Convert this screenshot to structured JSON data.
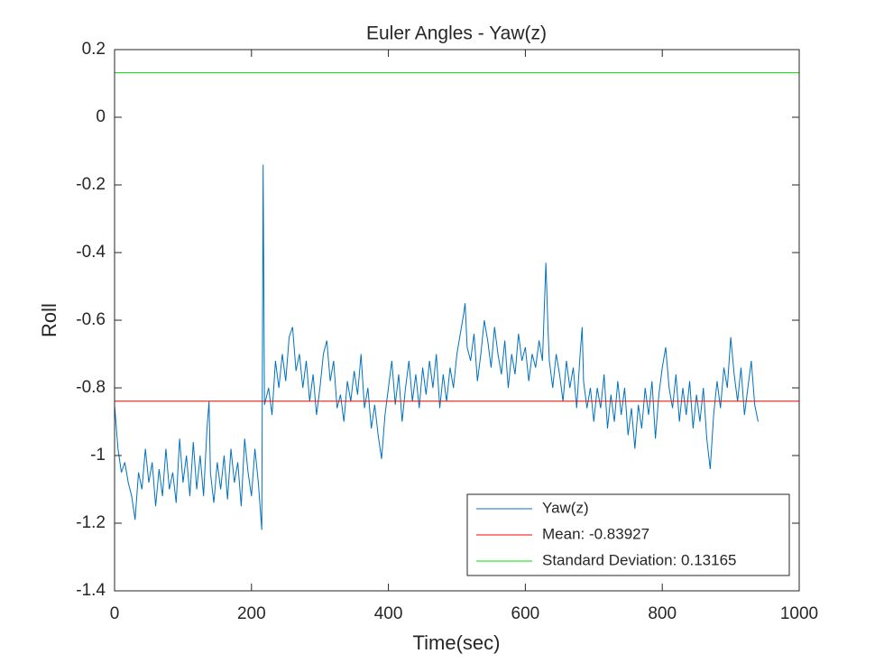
{
  "chart_data": {
    "type": "line",
    "title": "Euler Angles - Yaw(z)",
    "x_label": "Time(sec)",
    "y_label": "Roll",
    "xlim": [
      0,
      1000
    ],
    "xticks": [
      0,
      200,
      400,
      600,
      800,
      1000
    ],
    "ylim": [
      -1.4,
      0.2
    ],
    "yticks": [
      0.2,
      0,
      -0.2,
      -0.4,
      -0.6,
      -0.8,
      -1,
      -1.2,
      -1.4
    ],
    "grid": false,
    "legend": "lower right",
    "series": [
      {
        "name": "Yaw(z)",
        "color": "#0072bd",
        "x": [
          0,
          5,
          10,
          15,
          20,
          25,
          30,
          35,
          40,
          45,
          50,
          55,
          60,
          65,
          70,
          75,
          80,
          85,
          90,
          95,
          100,
          105,
          110,
          115,
          120,
          125,
          130,
          135,
          138,
          140,
          145,
          150,
          155,
          160,
          165,
          170,
          175,
          180,
          185,
          190,
          195,
          200,
          205,
          210,
          215,
          217,
          219,
          225,
          230,
          235,
          240,
          245,
          250,
          255,
          260,
          265,
          270,
          275,
          280,
          285,
          290,
          295,
          300,
          305,
          310,
          315,
          320,
          325,
          330,
          335,
          340,
          345,
          350,
          355,
          360,
          365,
          370,
          375,
          380,
          385,
          390,
          395,
          400,
          405,
          410,
          415,
          420,
          425,
          430,
          435,
          440,
          445,
          450,
          455,
          460,
          465,
          470,
          475,
          480,
          485,
          490,
          495,
          500,
          505,
          510,
          512,
          515,
          520,
          525,
          530,
          535,
          540,
          545,
          550,
          555,
          560,
          565,
          570,
          575,
          580,
          585,
          590,
          595,
          600,
          605,
          610,
          615,
          620,
          625,
          630,
          633,
          635,
          640,
          645,
          650,
          655,
          660,
          665,
          670,
          675,
          680,
          683,
          685,
          690,
          695,
          700,
          705,
          710,
          715,
          720,
          725,
          730,
          735,
          740,
          745,
          750,
          755,
          760,
          765,
          770,
          775,
          780,
          785,
          790,
          795,
          800,
          805,
          810,
          815,
          820,
          825,
          830,
          835,
          840,
          845,
          850,
          855,
          860,
          865,
          870,
          875,
          880,
          885,
          890,
          895,
          900,
          905,
          910,
          915,
          920,
          925,
          930,
          935,
          940
        ],
        "values": [
          -0.85,
          -0.98,
          -1.05,
          -1.02,
          -1.08,
          -1.12,
          -1.19,
          -1.05,
          -1.1,
          -0.98,
          -1.08,
          -1.02,
          -1.15,
          -1.04,
          -1.12,
          -0.98,
          -1.1,
          -1.05,
          -1.14,
          -0.95,
          -1.08,
          -1.0,
          -1.12,
          -0.96,
          -1.1,
          -1.0,
          -1.12,
          -0.92,
          -0.84,
          -1.05,
          -1.14,
          -1.02,
          -1.1,
          -1.0,
          -1.13,
          -0.98,
          -1.08,
          -1.02,
          -1.15,
          -0.95,
          -1.05,
          -1.12,
          -0.98,
          -1.08,
          -1.22,
          -0.14,
          -0.85,
          -0.8,
          -0.88,
          -0.72,
          -0.8,
          -0.7,
          -0.78,
          -0.65,
          -0.62,
          -0.75,
          -0.7,
          -0.8,
          -0.72,
          -0.84,
          -0.76,
          -0.88,
          -0.8,
          -0.7,
          -0.66,
          -0.78,
          -0.72,
          -0.86,
          -0.82,
          -0.9,
          -0.78,
          -0.84,
          -0.75,
          -0.82,
          -0.7,
          -0.86,
          -0.8,
          -0.92,
          -0.85,
          -0.94,
          -1.01,
          -0.88,
          -0.8,
          -0.72,
          -0.85,
          -0.76,
          -0.9,
          -0.8,
          -0.72,
          -0.84,
          -0.76,
          -0.86,
          -0.74,
          -0.82,
          -0.72,
          -0.8,
          -0.7,
          -0.86,
          -0.76,
          -0.84,
          -0.74,
          -0.8,
          -0.7,
          -0.64,
          -0.58,
          -0.55,
          -0.68,
          -0.72,
          -0.64,
          -0.78,
          -0.7,
          -0.6,
          -0.66,
          -0.74,
          -0.62,
          -0.7,
          -0.76,
          -0.66,
          -0.8,
          -0.7,
          -0.76,
          -0.64,
          -0.72,
          -0.68,
          -0.78,
          -0.7,
          -0.74,
          -0.66,
          -0.72,
          -0.43,
          -0.62,
          -0.72,
          -0.8,
          -0.7,
          -0.76,
          -0.84,
          -0.72,
          -0.8,
          -0.74,
          -0.86,
          -0.7,
          -0.62,
          -0.78,
          -0.86,
          -0.8,
          -0.9,
          -0.8,
          -0.86,
          -0.76,
          -0.92,
          -0.82,
          -0.9,
          -0.78,
          -0.88,
          -0.8,
          -0.94,
          -0.86,
          -0.98,
          -0.85,
          -0.92,
          -0.8,
          -0.88,
          -0.78,
          -0.95,
          -0.82,
          -0.74,
          -0.68,
          -0.8,
          -0.86,
          -0.76,
          -0.9,
          -0.8,
          -0.88,
          -0.78,
          -0.92,
          -0.82,
          -0.9,
          -0.8,
          -0.95,
          -1.04,
          -0.88,
          -0.78,
          -0.86,
          -0.74,
          -0.8,
          -0.65,
          -0.76,
          -0.84,
          -0.74,
          -0.88,
          -0.8,
          -0.72,
          -0.85,
          -0.9
        ]
      },
      {
        "name": "Mean: -0.83927",
        "color": "#ff0000",
        "x": [
          0,
          1000
        ],
        "values": [
          -0.83927,
          -0.83927
        ]
      },
      {
        "name": "Standard Deviation: 0.13165",
        "color": "#00e000",
        "x": [
          0,
          1000
        ],
        "values": [
          0.13165,
          0.13165
        ]
      }
    ]
  }
}
